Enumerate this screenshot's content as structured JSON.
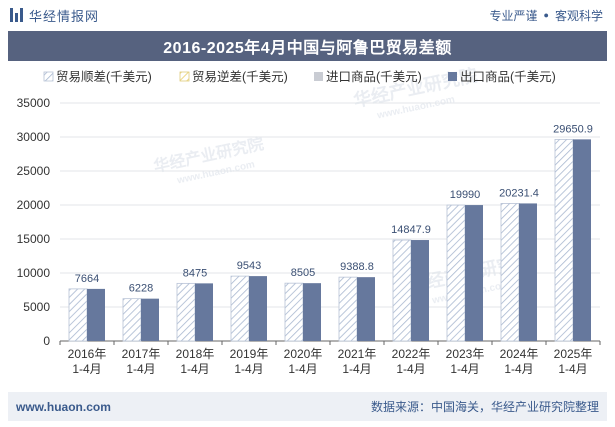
{
  "header": {
    "brand_name": "华经情报网",
    "tagline_left": "专业严谨",
    "tagline_right": "客观科学"
  },
  "title": "2016-2025年4月中国与阿鲁巴贸易差额",
  "footer": {
    "url": "www.huaon.com",
    "source": "数据来源：中国海关，华经产业研究院整理"
  },
  "watermark": "华经产业研究院",
  "watermark_url": "www.huaon.com",
  "chart_data": {
    "type": "bar",
    "categories": [
      "2016年\n1-4月",
      "2017年\n1-4月",
      "2018年\n1-4月",
      "2019年\n1-4月",
      "2020年\n1-4月",
      "2021年\n1-4月",
      "2022年\n1-4月",
      "2023年\n1-4月",
      "2024年\n1-4月",
      "2025年\n1-4月"
    ],
    "series": [
      {
        "name": "贸易顺差(千美元)",
        "values": [
          7664,
          6228,
          8475,
          9543,
          8505,
          9388.8,
          14847.9,
          19990,
          20231.4,
          29650.9
        ],
        "style": "hatched",
        "color": "#a9b8d0"
      },
      {
        "name": "贸易逆差(千美元)",
        "values": [
          0,
          0,
          0,
          0,
          0,
          0,
          0,
          0,
          0,
          0
        ],
        "style": "hatched-yellow",
        "color": "#e8cf6a"
      },
      {
        "name": "进口商品(千美元)",
        "values": [
          0,
          0,
          0,
          0,
          0,
          0,
          0,
          0,
          0,
          0
        ],
        "style": "solid",
        "color": "#c9ccd3"
      },
      {
        "name": "出口商品(千美元)",
        "values": [
          7664,
          6228,
          8475,
          9543,
          8505,
          9388.8,
          14847.9,
          19990,
          20231.4,
          29650.9
        ],
        "style": "solid",
        "color": "#66789d"
      }
    ],
    "data_labels": [
      "7664",
      "6228",
      "8475",
      "9543",
      "8505",
      "9388.8",
      "14847.9",
      "19990",
      "20231.4",
      "29650.9"
    ],
    "ylim": [
      0,
      35000
    ],
    "yticks": [
      0,
      5000,
      10000,
      15000,
      20000,
      25000,
      30000,
      35000
    ],
    "grid": true,
    "legend_position": "top-left"
  }
}
